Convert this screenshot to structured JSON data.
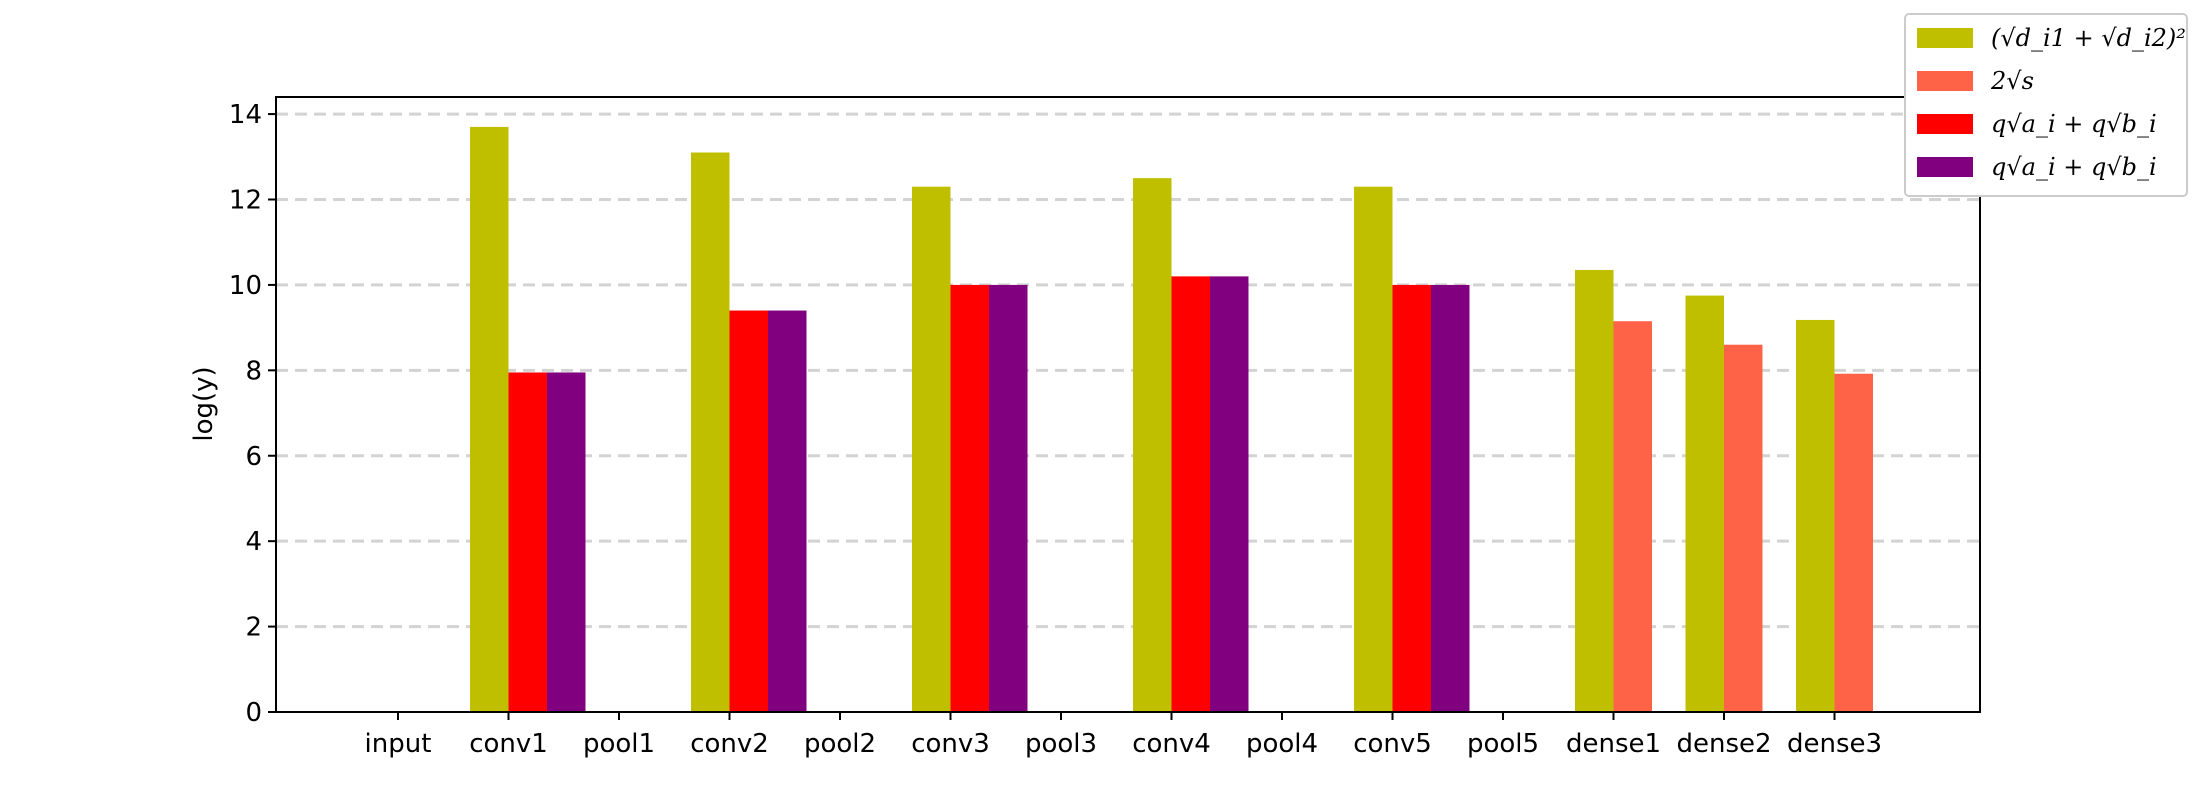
{
  "chart_data": {
    "type": "bar",
    "categories": [
      "input",
      "conv1",
      "pool1",
      "conv2",
      "pool2",
      "conv3",
      "pool3",
      "conv4",
      "pool4",
      "conv5",
      "pool5",
      "dense1",
      "dense2",
      "dense3"
    ],
    "ylabel": "log(y)",
    "xlabel": "",
    "ylim": [
      0,
      14.4
    ],
    "yticks": [
      0,
      2,
      4,
      6,
      8,
      10,
      12,
      14
    ],
    "grid": "horizontal dashed",
    "legend_position": "top-right (outside plot)",
    "series": [
      {
        "name": "(√d_i1 + √d_i2)²",
        "color": "#bfbf00",
        "values": [
          null,
          13.7,
          null,
          13.1,
          null,
          12.3,
          null,
          12.5,
          null,
          12.3,
          null,
          10.35,
          9.75,
          9.18
        ]
      },
      {
        "name": "2√s",
        "color": "#ff6347",
        "values": [
          null,
          null,
          null,
          null,
          null,
          null,
          null,
          null,
          null,
          null,
          null,
          9.15,
          8.6,
          7.92
        ]
      },
      {
        "name": "q√a_i + q√b_i",
        "color": "#ff0000",
        "values": [
          null,
          7.95,
          null,
          9.4,
          null,
          10.0,
          null,
          10.2,
          null,
          10.0,
          null,
          null,
          null,
          null
        ]
      },
      {
        "name": "q√a_i + q√b_i",
        "color": "#800080",
        "values": [
          null,
          7.95,
          null,
          9.4,
          null,
          10.0,
          null,
          10.2,
          null,
          10.0,
          null,
          null,
          null,
          null
        ]
      }
    ]
  }
}
